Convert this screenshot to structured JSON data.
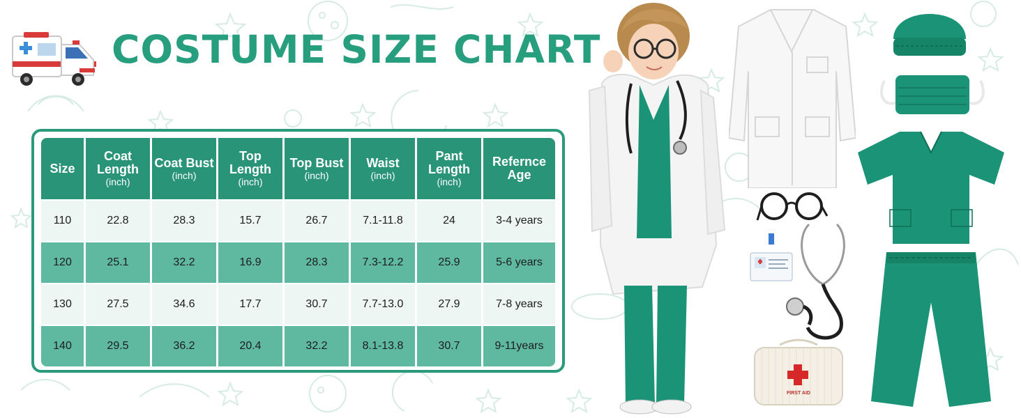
{
  "title": "COSTUME SIZE CHART",
  "size_table": {
    "headers": [
      {
        "label": "Size",
        "unit": ""
      },
      {
        "label": "Coat Length",
        "unit": "(inch)"
      },
      {
        "label": "Coat Bust",
        "unit": "(inch)"
      },
      {
        "label": "Top Length",
        "unit": "(inch)"
      },
      {
        "label": "Top Bust",
        "unit": "(inch)"
      },
      {
        "label": "Waist",
        "unit": "(inch)"
      },
      {
        "label": "Pant Length",
        "unit": "(inch)"
      },
      {
        "label": "Refernce Age",
        "unit": ""
      }
    ],
    "rows": [
      [
        "110",
        "22.8",
        "28.3",
        "15.7",
        "26.7",
        "7.1-11.8",
        "24",
        "3-4 years"
      ],
      [
        "120",
        "25.1",
        "32.2",
        "16.9",
        "28.3",
        "7.3-12.2",
        "25.9",
        "5-6 years"
      ],
      [
        "130",
        "27.5",
        "34.6",
        "17.7",
        "30.7",
        "7.7-13.0",
        "27.9",
        "7-8 years"
      ],
      [
        "140",
        "29.5",
        "36.2",
        "20.4",
        "32.2",
        "8.1-13.8",
        "30.7",
        "9-11years"
      ]
    ]
  },
  "first_aid_bag": {
    "label": "FIRST AID"
  },
  "colors": {
    "brand_green": "#279e7e",
    "header_bg": "#2a9479",
    "row_light": "#edf6f3",
    "row_dark": "#5fb9a0",
    "scrub_green": "#1a9377",
    "doodle": "#d8ece5"
  },
  "icons": [
    "ambulance-icon",
    "red-cross-icon"
  ]
}
